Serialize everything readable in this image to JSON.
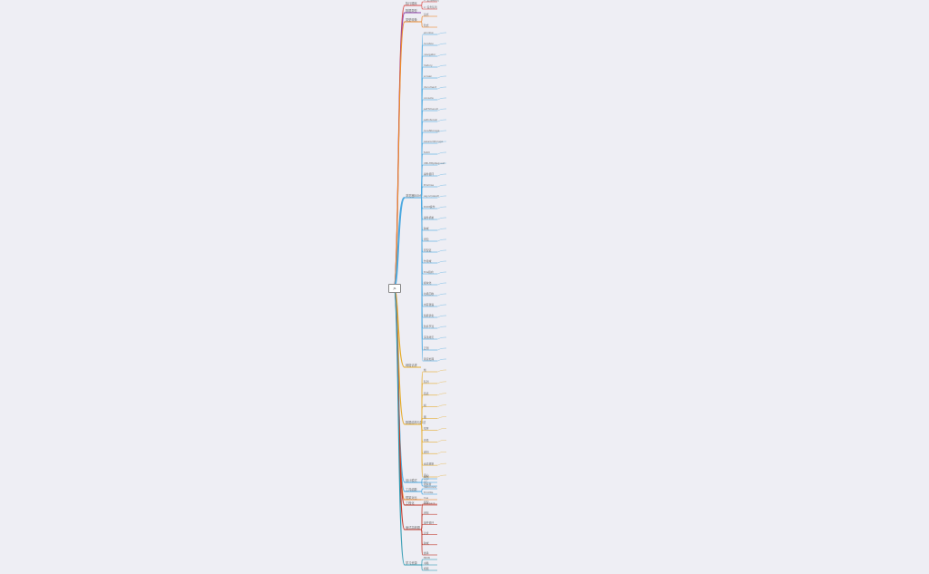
{
  "root": {
    "label": "JS"
  },
  "colors": {
    "red": "#d9534f",
    "orange": "#ec8a2e",
    "purple": "#8e44ad",
    "blue": "#4aa8e0",
    "yellow": "#e6ad2e",
    "crimson": "#c0392b",
    "teal": "#3a9fb5",
    "text": "#6a6a6a"
  },
  "branches": [
    {
      "label": "执行顺序",
      "color": "red",
      "children": [
        "1. 主线程执行",
        "2. 任务队列"
      ]
    },
    {
      "label": "数据类型",
      "color": "purple",
      "children": []
    },
    {
      "label": "类型转换",
      "color": "orange",
      "children": [
        "显式",
        "隐式"
      ]
    },
    {
      "label": "浏览器BOM",
      "color": "blue",
      "children": [
        "window",
        "location",
        "navigator",
        "history",
        "screen",
        "document",
        "console",
        "setTimeout",
        "setInterval",
        "localStorage",
        "sessionStorage",
        "fetch",
        "XMLHttpRequest",
        "事件循环",
        "Promise",
        "async/await",
        "DOM操作",
        "事件机制",
        "跨域",
        "闭包",
        "原型链",
        "作用域",
        "this指向",
        "模块化",
        "垃圾回收",
        "内存泄漏",
        "性能优化",
        "防抖节流",
        "深浅拷贝",
        "正则",
        "错误处理"
      ]
    },
    {
      "label": "网络请求",
      "color": "yellow",
      "children": []
    },
    {
      "label": "数据结构与算法",
      "color": "yellow",
      "children": [
        "栈",
        "队列",
        "链表",
        "树",
        "图",
        "排序",
        "查找",
        "递归",
        "动态规划",
        "贪心"
      ]
    },
    {
      "label": "设计模式",
      "color": "blue",
      "children": [
        "单例",
        "工厂",
        "观察者"
      ]
    },
    {
      "label": "工具函数",
      "color": "blue",
      "children": [
        "debounce",
        "throttle"
      ]
    },
    {
      "label": "框架对比",
      "color": "orange",
      "children": [
        "Vue"
      ]
    },
    {
      "label": "工程化",
      "color": "crimson",
      "children": [
        "webpack"
      ]
    },
    {
      "label": "面试高频题",
      "color": "crimson",
      "children": [
        "原型",
        "闭包",
        "事件循环",
        "异步",
        "跨域",
        "继承"
      ]
    },
    {
      "label": "学习资源",
      "color": "teal",
      "children": [
        "MDN",
        "书籍",
        "视频"
      ]
    }
  ]
}
